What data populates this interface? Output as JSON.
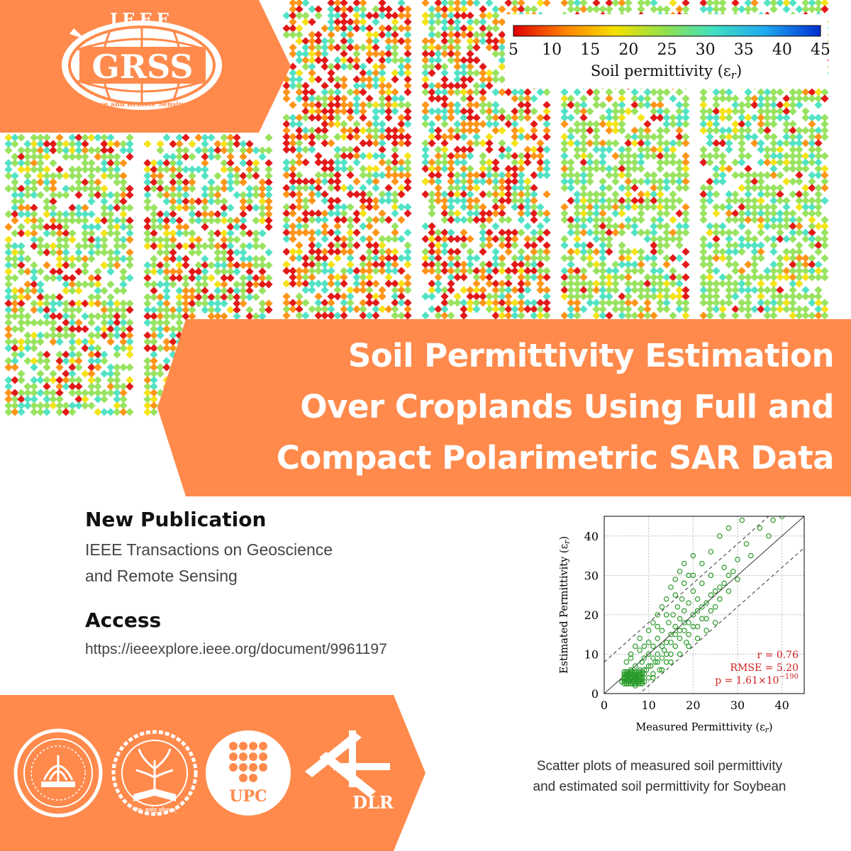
{
  "logo": {
    "arc_text": "IEEE",
    "acronym": "GRSS",
    "society": "Geoscience and Remote Sensing Society"
  },
  "colorbar": {
    "ticks": [
      "5",
      "10",
      "15",
      "20",
      "25",
      "30",
      "35",
      "40",
      "45"
    ],
    "label": "Soil permittivity (ε",
    "label_sub": "r",
    "label_close": ")",
    "colors": [
      "#e00000",
      "#ff8a00",
      "#f5e000",
      "#8ee050",
      "#3fe0c0",
      "#20a8f0",
      "#0030d0"
    ]
  },
  "title": {
    "lines": [
      "Soil Permittivity Estimation",
      "Over Croplands Using Full and",
      "Compact Polarimetric SAR Data"
    ]
  },
  "publication": {
    "heading": "New Publication",
    "line1": "IEEE Transactions on Geoscience",
    "line2": "and Remote Sensing"
  },
  "access": {
    "heading": "Access",
    "url": "https://ieeexplore.ieee.org/document/9961197"
  },
  "partners": {
    "upc": "UPC",
    "dlr": "DLR",
    "iit_motto": "योग: कर्मसु कौशलम्"
  },
  "caption": {
    "line1": "Scatter plots of measured soil permittivity",
    "line2": "and estimated soil permittivity for Soybean"
  },
  "chart_data": {
    "type": "scatter",
    "xlabel": "Measured Permittivity (ε",
    "ylabel": "Estimated Permittivity (ε",
    "axis_sub": "r",
    "xlim": [
      0,
      45
    ],
    "ylim": [
      0,
      45
    ],
    "xticks": [
      0,
      10,
      20,
      30,
      40
    ],
    "yticks": [
      0,
      10,
      20,
      30,
      40
    ],
    "grid": true,
    "series_color": "#2a9a2a",
    "lines": [
      {
        "style": "solid",
        "offset": 0
      },
      {
        "style": "dashed",
        "offset": 8
      },
      {
        "style": "dashed",
        "offset": -8
      }
    ],
    "stats": {
      "r": "r = 0.76",
      "rmse": "RMSE = 5.20",
      "p": "p =  1.61×10",
      "p_exp": "−190"
    },
    "points": [
      [
        4,
        3
      ],
      [
        4.5,
        4
      ],
      [
        5,
        2.5
      ],
      [
        5,
        5
      ],
      [
        5.5,
        3.5
      ],
      [
        6,
        4
      ],
      [
        6,
        6
      ],
      [
        6.5,
        3
      ],
      [
        7,
        5
      ],
      [
        7,
        7
      ],
      [
        7.5,
        4
      ],
      [
        8,
        6
      ],
      [
        8,
        3
      ],
      [
        8.5,
        8
      ],
      [
        9,
        5
      ],
      [
        9,
        9
      ],
      [
        9.5,
        6
      ],
      [
        10,
        4
      ],
      [
        10,
        10
      ],
      [
        10.5,
        7
      ],
      [
        11,
        5
      ],
      [
        11,
        12
      ],
      [
        11.5,
        8
      ],
      [
        12,
        10
      ],
      [
        12,
        14
      ],
      [
        12.5,
        6
      ],
      [
        13,
        9
      ],
      [
        13,
        16
      ],
      [
        13.5,
        11
      ],
      [
        14,
        8
      ],
      [
        14,
        13
      ],
      [
        14.5,
        18
      ],
      [
        15,
        10
      ],
      [
        15,
        15
      ],
      [
        15.5,
        20
      ],
      [
        16,
        12
      ],
      [
        16,
        17
      ],
      [
        16.5,
        22
      ],
      [
        17,
        14
      ],
      [
        17,
        19
      ],
      [
        17.5,
        24
      ],
      [
        18,
        16
      ],
      [
        18,
        21
      ],
      [
        18.5,
        13
      ],
      [
        19,
        18
      ],
      [
        19,
        23
      ],
      [
        20,
        20
      ],
      [
        20,
        26
      ],
      [
        21,
        17
      ],
      [
        21,
        24
      ],
      [
        22,
        22
      ],
      [
        22,
        28
      ],
      [
        23,
        19
      ],
      [
        24,
        25
      ],
      [
        24,
        30
      ],
      [
        25,
        22
      ],
      [
        26,
        27
      ],
      [
        27,
        32
      ],
      [
        28,
        30
      ],
      [
        30,
        34
      ],
      [
        32,
        38
      ],
      [
        33,
        35
      ],
      [
        35,
        42
      ],
      [
        37,
        40
      ],
      [
        38,
        44
      ],
      [
        40,
        45
      ],
      [
        5,
        8
      ],
      [
        6,
        10
      ],
      [
        7,
        12
      ],
      [
        8,
        14
      ],
      [
        9,
        12
      ],
      [
        10,
        16
      ],
      [
        11,
        18
      ],
      [
        12,
        20
      ],
      [
        13,
        22
      ],
      [
        14,
        24
      ],
      [
        15,
        27
      ],
      [
        16,
        29
      ],
      [
        17,
        31
      ],
      [
        18,
        33
      ],
      [
        19,
        30
      ],
      [
        20,
        35
      ],
      [
        22,
        33
      ],
      [
        24,
        36
      ],
      [
        26,
        40
      ],
      [
        28,
        42
      ],
      [
        31,
        44
      ],
      [
        6,
        9
      ],
      [
        8,
        11
      ],
      [
        10,
        13
      ],
      [
        12,
        17
      ],
      [
        14,
        20
      ],
      [
        16,
        25
      ],
      [
        18,
        28
      ],
      [
        20,
        30
      ],
      [
        5,
        4
      ],
      [
        6,
        5
      ],
      [
        7,
        4
      ],
      [
        8,
        5
      ],
      [
        9,
        6
      ],
      [
        10,
        7
      ],
      [
        11,
        9
      ],
      [
        12,
        8
      ],
      [
        13,
        12
      ],
      [
        14,
        10
      ],
      [
        15,
        13
      ],
      [
        16,
        15
      ],
      [
        17,
        16
      ],
      [
        18,
        18
      ],
      [
        19,
        15
      ],
      [
        20,
        17
      ],
      [
        21,
        21
      ],
      [
        22,
        19
      ],
      [
        23,
        23
      ],
      [
        24,
        21
      ],
      [
        25,
        26
      ],
      [
        26,
        24
      ],
      [
        27,
        28
      ],
      [
        28,
        26
      ],
      [
        29,
        31
      ],
      [
        30,
        29
      ],
      [
        7,
        2
      ],
      [
        9,
        3
      ],
      [
        11,
        4
      ],
      [
        13,
        6
      ],
      [
        15,
        8
      ],
      [
        17,
        10
      ],
      [
        19,
        12
      ],
      [
        21,
        14
      ],
      [
        23,
        16
      ],
      [
        25,
        18
      ]
    ]
  }
}
